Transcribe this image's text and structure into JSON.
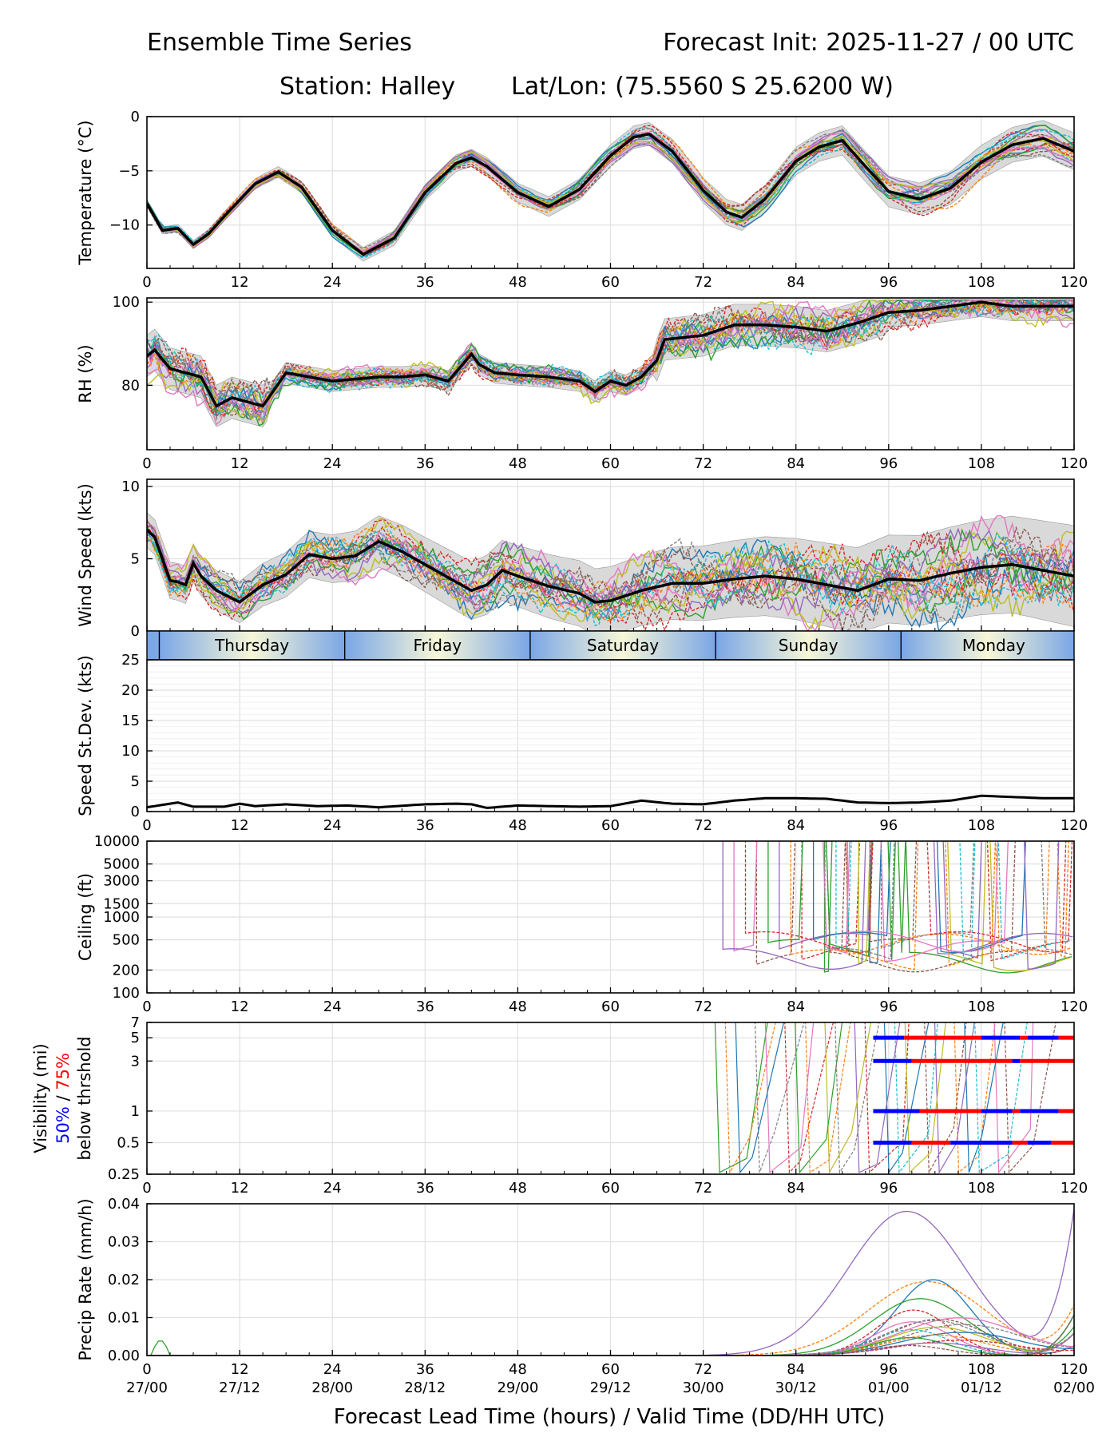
{
  "header": {
    "title_left": "Ensemble Time Series",
    "title_right": "Forecast Init: 2025-11-27 / 00 UTC",
    "station": "Station: Halley",
    "latlon": "Lat/Lon: (75.5560 S 25.6200 W)"
  },
  "xaxis": {
    "ticks": [
      0,
      12,
      24,
      36,
      48,
      60,
      72,
      84,
      96,
      108,
      120
    ],
    "valid_labels": [
      "27/00",
      "27/12",
      "28/00",
      "28/12",
      "29/00",
      "29/12",
      "30/00",
      "30/12",
      "01/00",
      "01/12",
      "02/00"
    ],
    "label": "Forecast Lead Time (hours) / Valid Time (DD/HH UTC)"
  },
  "day_bar": {
    "days": [
      "Thursday",
      "Friday",
      "Saturday",
      "Sunday",
      "Monday"
    ],
    "boundaries_hour": [
      1.6,
      25.6,
      49.6,
      73.6,
      97.6
    ]
  },
  "colors": {
    "mean": "#000000",
    "spread": "#d9d9d9",
    "vis50": "#0000ff",
    "vis75": "#ff0000",
    "palette": [
      "#1f77b4",
      "#ff7f0e",
      "#2ca02c",
      "#d62728",
      "#9467bd",
      "#8c564b",
      "#e377c2",
      "#7f7f7f",
      "#bcbd22",
      "#17becf"
    ]
  },
  "chart_data": [
    {
      "id": "temperature",
      "type": "line",
      "ylabel": "Temperature (°C)",
      "ylim": [
        -14,
        0
      ],
      "yticks": [
        0,
        -5,
        -10
      ],
      "xlim": [
        0,
        120
      ],
      "ensemble_members": 20,
      "mean": {
        "x": [
          0,
          2,
          4,
          6,
          8,
          10,
          14,
          17,
          20,
          24,
          28,
          32,
          36,
          40,
          42,
          44,
          48,
          52,
          56,
          60,
          63,
          65,
          68,
          72,
          75,
          77,
          80,
          84,
          87,
          90,
          93,
          96,
          100,
          104,
          108,
          112,
          116,
          120
        ],
        "y": [
          -8,
          -10.5,
          -10.3,
          -11.8,
          -10.8,
          -9.2,
          -6.2,
          -5.1,
          -6.5,
          -10.5,
          -12.7,
          -11.2,
          -7,
          -4.3,
          -3.8,
          -4.6,
          -7,
          -8.3,
          -6.7,
          -3.6,
          -1.9,
          -1.6,
          -3.2,
          -6.8,
          -8.8,
          -9.3,
          -7.6,
          -4.1,
          -2.8,
          -2.2,
          -4.6,
          -6.9,
          -7.6,
          -6.6,
          -4.2,
          -2.6,
          -2,
          -3.2
        ]
      }
    },
    {
      "id": "rh",
      "type": "line",
      "ylabel": "RH (%)",
      "ylim": [
        64.5,
        101
      ],
      "yticks": [
        100,
        80
      ],
      "xlim": [
        0,
        120
      ],
      "ensemble_members": 20,
      "mean": {
        "x": [
          0,
          1,
          3,
          5,
          7,
          9,
          11,
          13,
          15,
          18,
          21,
          24,
          27,
          30,
          33,
          36,
          39,
          42,
          43,
          45,
          48,
          52,
          56,
          58,
          60,
          62,
          64,
          66,
          67,
          72,
          76,
          80,
          84,
          88,
          92,
          96,
          100,
          104,
          108,
          112,
          116,
          120
        ],
        "y": [
          87,
          88.5,
          84,
          83,
          82,
          75,
          77,
          76,
          75,
          83,
          82,
          81,
          81.5,
          82,
          82,
          82.5,
          81,
          87.5,
          85,
          83,
          82.5,
          82,
          81,
          78.5,
          81,
          80,
          82,
          86,
          91,
          92,
          94.5,
          94.5,
          94,
          93,
          95,
          97.5,
          98,
          99,
          100,
          99,
          99,
          99
        ]
      }
    },
    {
      "id": "wind_speed",
      "type": "line",
      "ylabel": "Wind Speed (kts)",
      "ylim": [
        0,
        10.5
      ],
      "yticks": [
        10,
        5,
        0
      ],
      "xlim": [
        0,
        120
      ],
      "ensemble_members": 20,
      "mean": {
        "x": [
          0,
          1,
          2,
          3,
          4,
          5,
          6,
          7,
          9,
          12,
          15,
          18,
          21,
          24,
          27,
          30,
          33,
          36,
          40,
          42,
          44,
          46,
          48,
          52,
          56,
          58,
          60,
          64,
          68,
          72,
          76,
          80,
          84,
          88,
          92,
          96,
          100,
          104,
          108,
          112,
          116,
          120
        ],
        "y": [
          7,
          6.5,
          5,
          3.5,
          3.4,
          3.2,
          4.7,
          3.8,
          2.8,
          2,
          3.2,
          3.9,
          5.3,
          5,
          5.2,
          6.2,
          5.5,
          4.6,
          3.4,
          2.8,
          3.2,
          4.2,
          3.8,
          3.1,
          2.6,
          2,
          2.1,
          2.8,
          3.3,
          3.3,
          3.6,
          3.8,
          3.6,
          3.2,
          2.8,
          3.6,
          3.5,
          4,
          4.4,
          4.6,
          4.2,
          3.8
        ]
      }
    },
    {
      "id": "speed_stdev",
      "type": "line",
      "ylabel": "Speed St.Dev. (kts)",
      "ylim": [
        0,
        25
      ],
      "yticks": [
        25,
        20,
        15,
        10,
        5,
        0
      ],
      "xlim": [
        0,
        120
      ],
      "mean": {
        "x": [
          0,
          2,
          4,
          6,
          8,
          10,
          12,
          14,
          18,
          22,
          26,
          30,
          36,
          40,
          42,
          44,
          48,
          52,
          56,
          60,
          64,
          68,
          72,
          76,
          80,
          84,
          88,
          92,
          96,
          100,
          104,
          108,
          112,
          116,
          120
        ],
        "y": [
          0.7,
          1.1,
          1.5,
          0.8,
          0.8,
          0.8,
          1.3,
          0.9,
          1.2,
          0.9,
          1.0,
          0.7,
          1.2,
          1.3,
          1.2,
          0.6,
          1.0,
          0.9,
          0.8,
          0.9,
          1.8,
          1.3,
          1.2,
          1.8,
          2.2,
          2.2,
          2.1,
          1.5,
          1.4,
          1.5,
          1.8,
          2.6,
          2.4,
          2.2,
          2.2
        ]
      }
    },
    {
      "id": "ceiling",
      "type": "line",
      "scale": "log",
      "ylabel": "Ceiling (ft)",
      "ylim": [
        100,
        10000
      ],
      "yticks": [
        10000,
        5000,
        3000,
        1500,
        1000,
        500,
        200,
        100
      ],
      "xlim": [
        0,
        120
      ],
      "data_starts_hour": 74
    },
    {
      "id": "visibility",
      "type": "line",
      "scale": "log",
      "ylabel": "Visibility (mi)",
      "ylabel_parts": [
        "50%",
        " / ",
        "75%"
      ],
      "ylabel_line3": "below thrshold",
      "ylim": [
        0.25,
        7
      ],
      "yticks": [
        7,
        5,
        3,
        1,
        0.5,
        0.25
      ],
      "ytick_labels": [
        "7",
        "5",
        "3",
        "1",
        "0.5",
        "0.25"
      ],
      "xlim": [
        0,
        120
      ],
      "thresholds": [
        5,
        3,
        1,
        0.5
      ],
      "threshold_segments": {
        "5": [
          [
            94,
            98,
            "50%"
          ],
          [
            98,
            108,
            "75%"
          ],
          [
            108,
            113,
            "50%"
          ],
          [
            113,
            114,
            "75%"
          ],
          [
            114,
            118,
            "50%"
          ],
          [
            118,
            120,
            "75%"
          ]
        ],
        "3": [
          [
            94,
            99,
            "50%"
          ],
          [
            99,
            112,
            "75%"
          ],
          [
            112,
            113,
            "50%"
          ],
          [
            113,
            120,
            "75%"
          ]
        ],
        "1": [
          [
            94,
            100,
            "50%"
          ],
          [
            100,
            108,
            "75%"
          ],
          [
            108,
            112,
            "50%"
          ],
          [
            112,
            113,
            "75%"
          ],
          [
            113,
            118,
            "50%"
          ],
          [
            118,
            120,
            "75%"
          ]
        ],
        "0.5": [
          [
            94,
            99,
            "50%"
          ],
          [
            99,
            104,
            "75%"
          ],
          [
            104,
            112,
            "50%"
          ],
          [
            112,
            114,
            "75%"
          ],
          [
            114,
            117,
            "50%"
          ],
          [
            117,
            120,
            "75%"
          ]
        ]
      }
    },
    {
      "id": "precip",
      "type": "line",
      "ylabel": "Precip Rate (mm/h)",
      "ylim": [
        0,
        0.04
      ],
      "yticks": [
        0.04,
        0.03,
        0.02,
        0.01,
        0.0
      ],
      "ytick_labels": [
        "0.04",
        "0.03",
        "0.02",
        "0.01",
        "0.00"
      ],
      "xlim": [
        0,
        120
      ],
      "peak_values": [
        0.02,
        0.0195,
        0.015,
        0.012,
        0.038
      ]
    }
  ]
}
